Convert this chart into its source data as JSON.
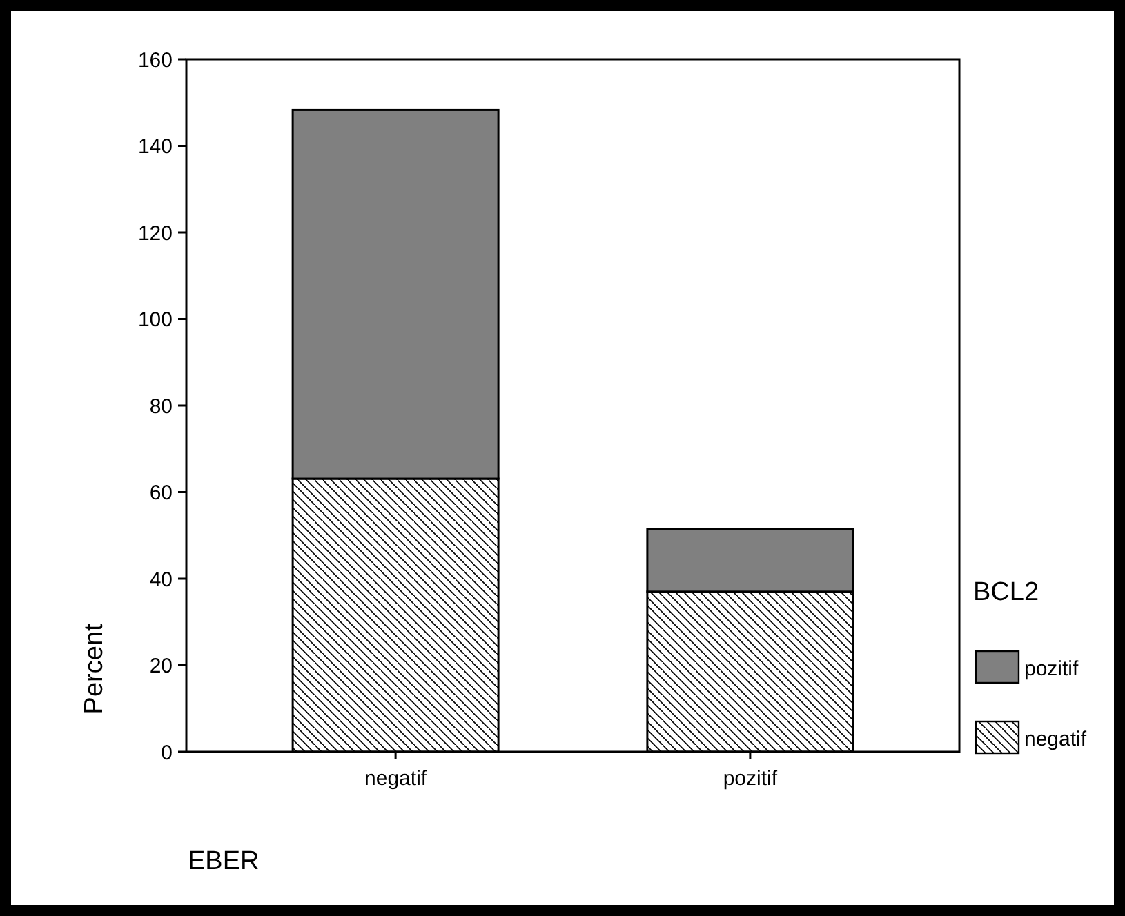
{
  "chart_data": {
    "type": "bar",
    "stacked": true,
    "xlabel": "EBER",
    "ylabel": "Percent",
    "legend_title": "BCL2",
    "legend": "right",
    "categories": [
      "negatif",
      "pozitif"
    ],
    "series": [
      {
        "name": "negatif",
        "color": "#000000",
        "values": [
          63.1,
          37.0
        ]
      },
      {
        "name": "pozitif",
        "color": "#808080",
        "values": [
          85.2,
          14.4
        ]
      }
    ],
    "ylim": [
      0,
      160
    ],
    "yticks": [
      0,
      20,
      40,
      60,
      80,
      100,
      120,
      140,
      160
    ]
  }
}
